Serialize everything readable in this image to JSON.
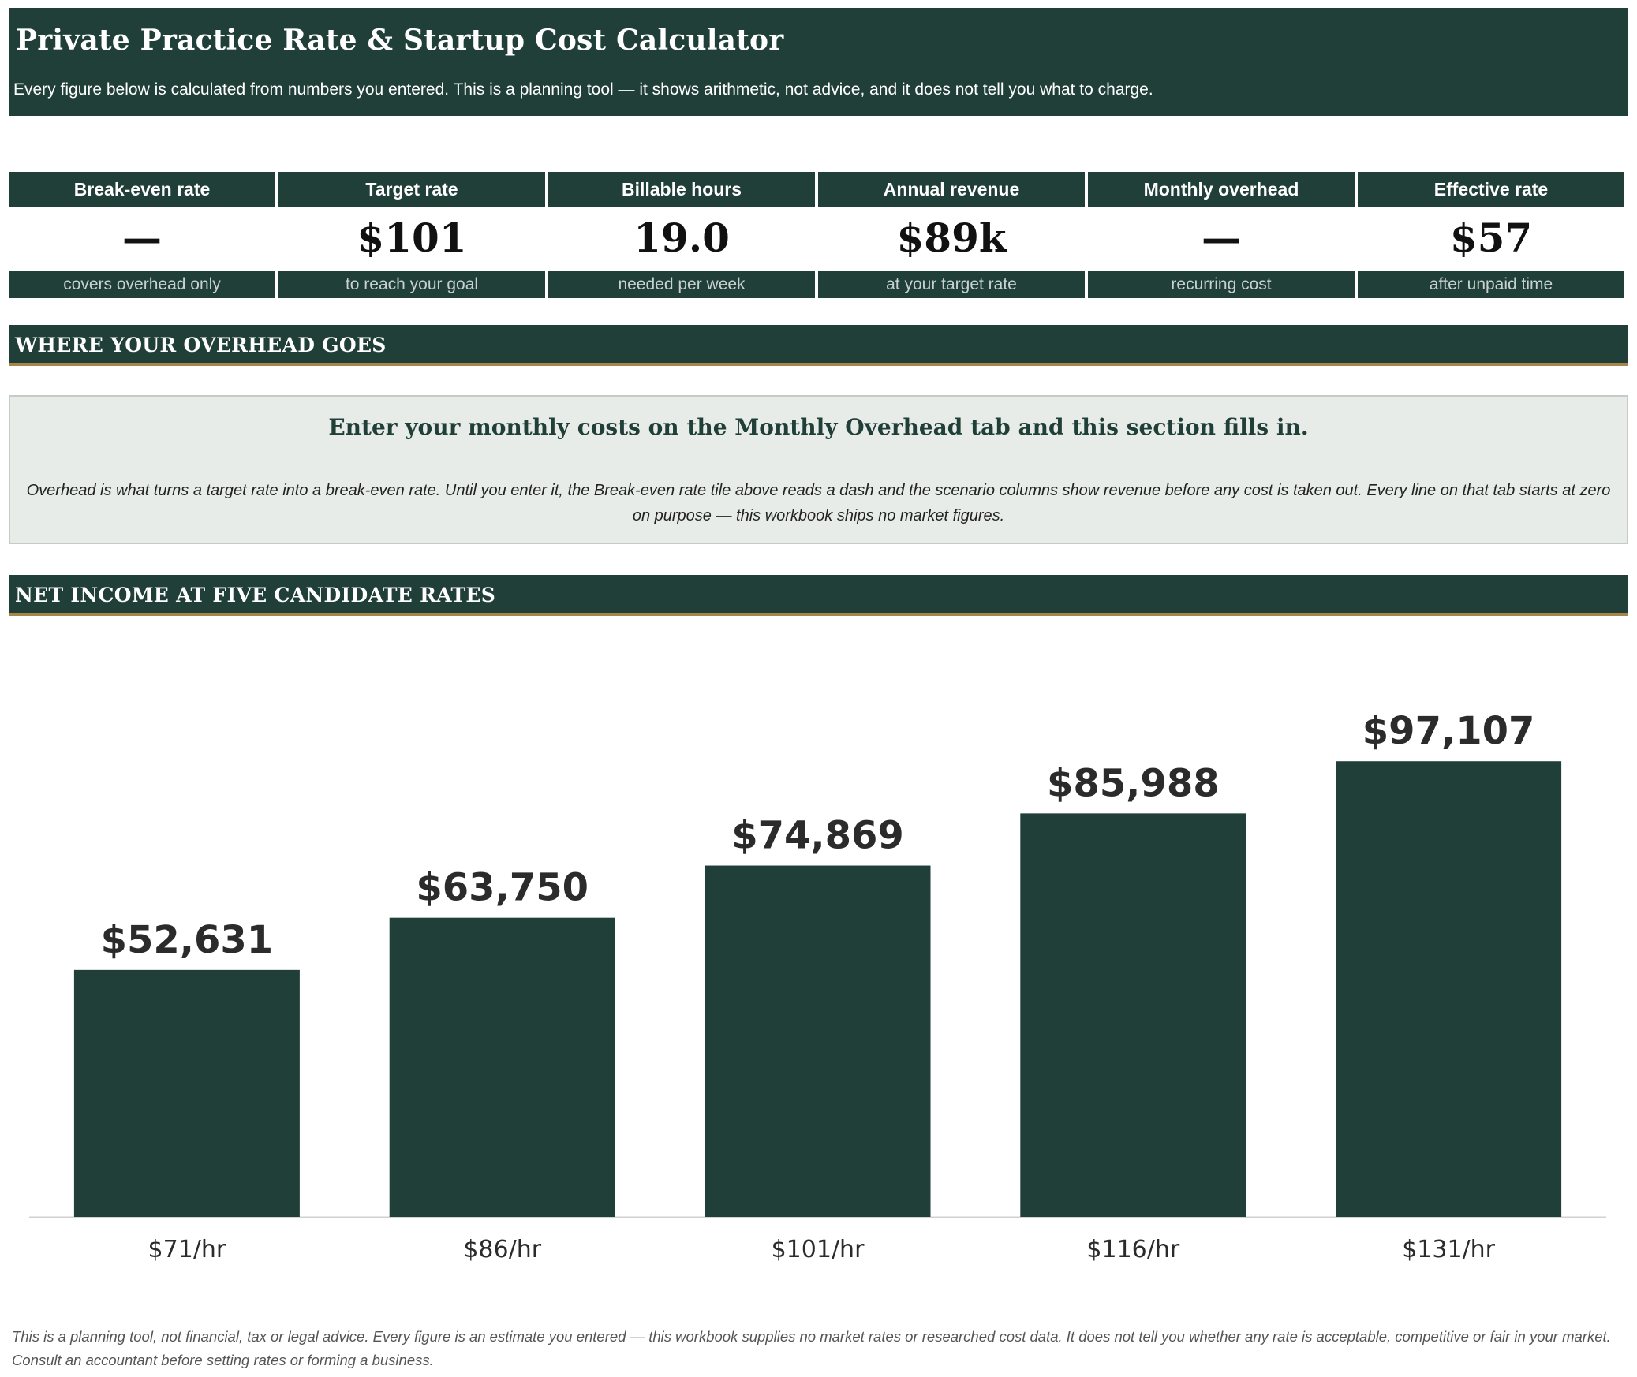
{
  "header": {
    "title": "Private Practice Rate & Startup Cost Calculator",
    "subtitle": "Every figure below is calculated from numbers you entered. This is a planning tool — it shows arithmetic, not advice, and it does not tell you what to charge."
  },
  "tiles": [
    {
      "label": "Break-even rate",
      "value": "—",
      "note": "covers overhead only"
    },
    {
      "label": "Target rate",
      "value": "$101",
      "note": "to reach your goal"
    },
    {
      "label": "Billable hours",
      "value": "19.0",
      "note": "needed per week"
    },
    {
      "label": "Annual revenue",
      "value": "$89k",
      "note": "at your target rate"
    },
    {
      "label": "Monthly overhead",
      "value": "—",
      "note": "recurring cost"
    },
    {
      "label": "Effective rate",
      "value": "$57",
      "note": "after unpaid time"
    }
  ],
  "overhead_section": {
    "title": "WHERE YOUR OVERHEAD GOES",
    "notice_heading": "Enter your monthly costs on the Monthly Overhead tab and this section fills in.",
    "notice_body": "Overhead is what turns a target rate into a break-even rate. Until you enter it, the Break-even rate tile above reads a dash and the scenario columns show revenue before any cost is taken out. Every line on that tab starts at zero on purpose — this workbook ships no market figures."
  },
  "income_section": {
    "title": "NET INCOME AT FIVE CANDIDATE RATES"
  },
  "chart_data": {
    "type": "bar",
    "categories": [
      "$71/hr",
      "$86/hr",
      "$101/hr",
      "$116/hr",
      "$131/hr"
    ],
    "values": [
      52631,
      63750,
      74869,
      85988,
      97107
    ],
    "data_labels": [
      "$52,631",
      "$63,750",
      "$74,869",
      "$85,988",
      "$97,107"
    ],
    "title": "",
    "xlabel": "",
    "ylabel": "",
    "ylim": [
      0,
      100000
    ],
    "grid": false,
    "legend": "none",
    "bar_color": "#203f38"
  },
  "disclaimer": "This is a planning tool, not financial, tax or legal advice. Every figure is an estimate you entered — this workbook supplies no market rates or researched cost data. It does not tell you whether any rate is acceptable, competitive or fair in your market. Consult an accountant before setting rates or forming a business.",
  "colors": {
    "primary": "#203f38",
    "accent": "#a8864a",
    "notice_bg": "#e8ece9"
  }
}
